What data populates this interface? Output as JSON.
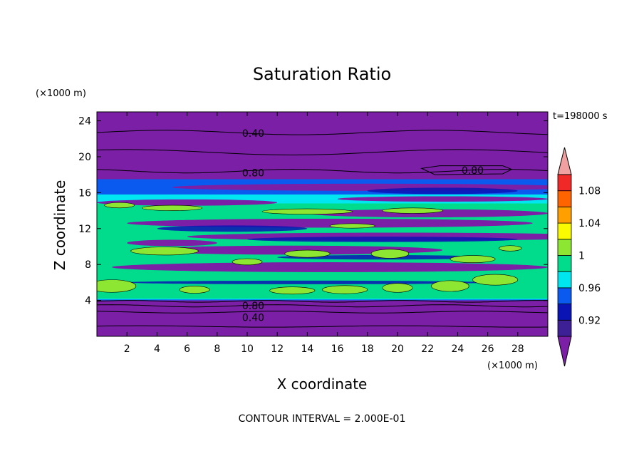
{
  "chart_data": {
    "type": "heatmap",
    "title": "Saturation Ratio",
    "xlabel": "X coordinate",
    "ylabel": "Z coordinate",
    "x_unit": "(×1000 m)",
    "y_unit": "(×1000 m)",
    "time_label": "t=198000 s",
    "footer": "CONTOUR INTERVAL = 2.000E-01",
    "xlim": [
      0,
      30
    ],
    "ylim": [
      0,
      25
    ],
    "x_ticks": [
      "2",
      "4",
      "6",
      "8",
      "10",
      "12",
      "14",
      "16",
      "18",
      "20",
      "22",
      "24",
      "26",
      "28"
    ],
    "x_tick_values": [
      2,
      4,
      6,
      8,
      10,
      12,
      14,
      16,
      18,
      20,
      22,
      24,
      26,
      28
    ],
    "y_ticks": [
      "4",
      "8",
      "12",
      "16",
      "20",
      "24"
    ],
    "y_tick_values": [
      4,
      8,
      12,
      16,
      20,
      24
    ],
    "contour_labels": [
      {
        "text": "0.40",
        "x": 10.4,
        "z": 22.6
      },
      {
        "text": "0.80",
        "x": 10.4,
        "z": 18.2
      },
      {
        "text": "0.80",
        "x": 25.0,
        "z": 18.5
      },
      {
        "text": "0.80",
        "x": 10.4,
        "z": 3.4
      },
      {
        "text": "0.40",
        "x": 10.4,
        "z": 2.1
      }
    ],
    "colorbar": {
      "colors": [
        "#7a1fa6",
        "#3d1f96",
        "#0a14b4",
        "#0a5af0",
        "#00e6f0",
        "#00dc8c",
        "#8ce632",
        "#fafa00",
        "#ffa000",
        "#ff6400",
        "#f02828",
        "#f0a0a0"
      ],
      "tick_labels": [
        "0.92",
        "0.96",
        "1",
        "1.04",
        "1.08"
      ],
      "tick_values": [
        0.92,
        0.96,
        1.0,
        1.04,
        1.08
      ],
      "min": 0.9,
      "max": 1.1
    },
    "colors": {
      "background": "#7a1fa6",
      "deep_blue": "#0a14b4",
      "blue": "#0a5af0",
      "cyan": "#00e6f0",
      "green": "#00dc8c",
      "lime": "#8ce632"
    }
  }
}
